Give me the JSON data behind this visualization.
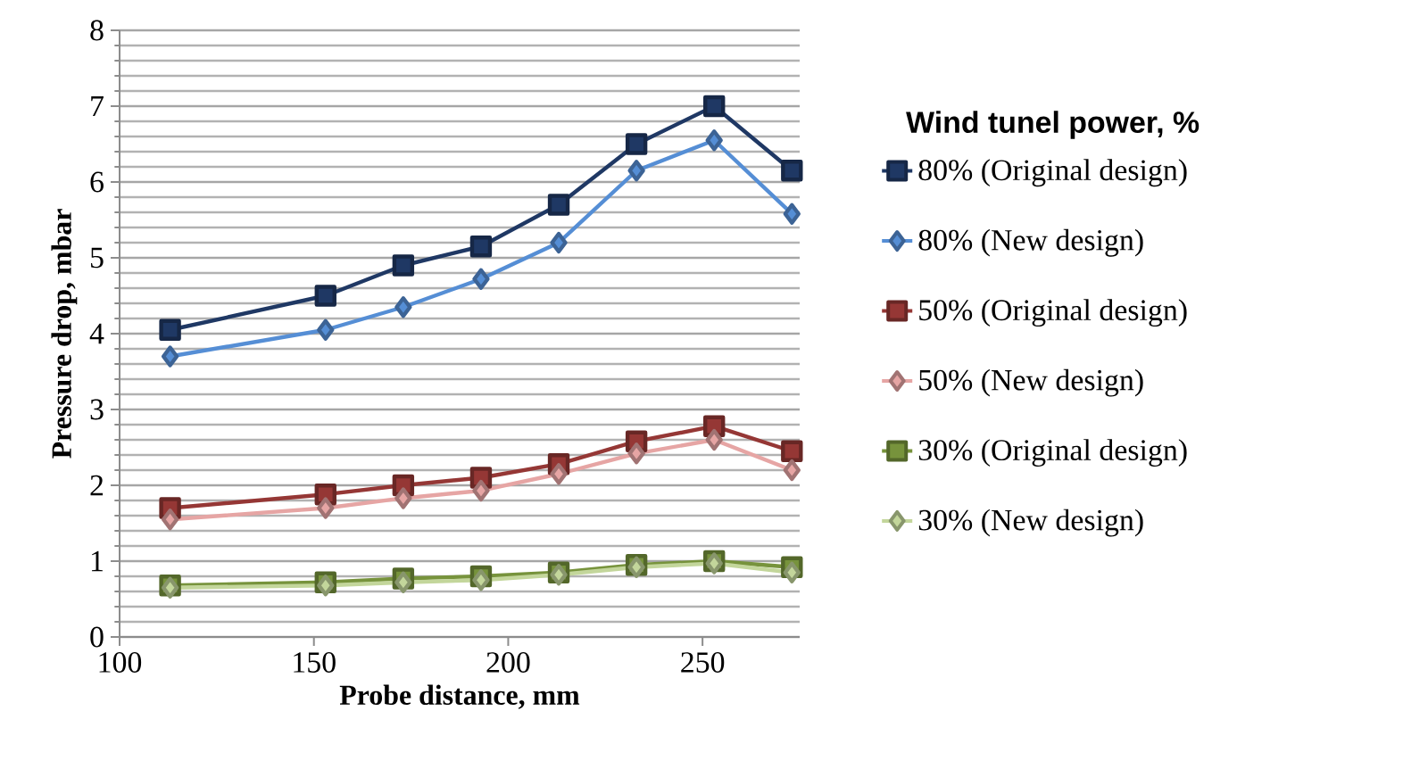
{
  "chart_data": {
    "type": "line",
    "xlabel": "Probe distance, mm",
    "ylabel": "Pressure drop, mbar",
    "legend_title": "Wind tunel power, %",
    "x": [
      113,
      153,
      173,
      193,
      213,
      233,
      253,
      273
    ],
    "xlim": [
      100,
      275
    ],
    "xticks": [
      100,
      150,
      200,
      250
    ],
    "ylim": [
      0,
      8
    ],
    "yticks": [
      0,
      1,
      2,
      3,
      4,
      5,
      6,
      7,
      8
    ],
    "grid": "y",
    "legend": "right",
    "line_style": "solid",
    "series": [
      {
        "name": "80% (Original design)",
        "color": "#1f3864",
        "marker": "square",
        "values": [
          4.05,
          4.5,
          4.9,
          5.15,
          5.7,
          6.5,
          7.0,
          6.15
        ]
      },
      {
        "name": "80% (New design)",
        "color": "#558ed5",
        "marker": "diamond",
        "values": [
          3.7,
          4.05,
          4.35,
          4.72,
          5.2,
          6.15,
          6.55,
          5.58
        ]
      },
      {
        "name": "50% (Original design)",
        "color": "#953735",
        "marker": "square",
        "values": [
          1.7,
          1.88,
          2.0,
          2.1,
          2.28,
          2.58,
          2.78,
          2.45
        ]
      },
      {
        "name": "50% (New design)",
        "color": "#e6a5a4",
        "marker": "diamond",
        "values": [
          1.55,
          1.7,
          1.83,
          1.93,
          2.15,
          2.42,
          2.6,
          2.2
        ]
      },
      {
        "name": "30% (Original design)",
        "color": "#77933c",
        "marker": "square",
        "values": [
          0.68,
          0.72,
          0.77,
          0.8,
          0.85,
          0.95,
          1.0,
          0.92
        ]
      },
      {
        "name": "30% (New design)",
        "color": "#c3d69b",
        "marker": "diamond",
        "values": [
          0.65,
          0.68,
          0.72,
          0.75,
          0.82,
          0.92,
          0.97,
          0.85
        ]
      }
    ]
  }
}
